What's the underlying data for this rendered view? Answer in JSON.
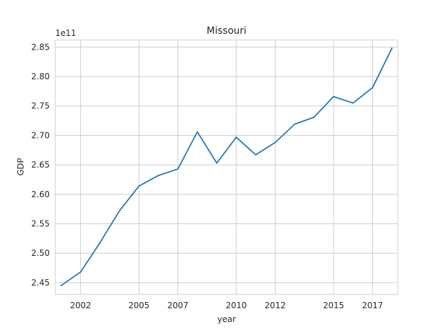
{
  "chart_data": {
    "type": "line",
    "title": "Missouri",
    "xlabel": "year",
    "ylabel": "GDP",
    "offset_text": "1e11",
    "grid": true,
    "x_ticks": [
      "2002",
      "2005",
      "2007",
      "2010",
      "2012",
      "2015",
      "2017"
    ],
    "y_ticks": [
      "2.45",
      "2.50",
      "2.55",
      "2.60",
      "2.65",
      "2.70",
      "2.75",
      "2.80",
      "2.85"
    ],
    "xlim": [
      2000.7,
      2018.3
    ],
    "ylim": [
      2.43,
      2.862
    ],
    "line_color": "#1f77b4",
    "series": [
      {
        "x": [
          2001,
          2002,
          2003,
          2004,
          2005,
          2006,
          2007,
          2008,
          2009,
          2010,
          2011,
          2012,
          2013,
          2014,
          2015,
          2016,
          2017,
          2018
        ],
        "values": [
          2.445,
          2.468,
          2.518,
          2.572,
          2.614,
          2.632,
          2.643,
          2.706,
          2.653,
          2.697,
          2.667,
          2.688,
          2.719,
          2.731,
          2.766,
          2.755,
          2.781,
          2.848
        ]
      }
    ]
  }
}
